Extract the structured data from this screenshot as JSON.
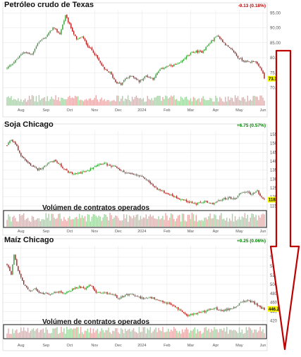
{
  "colors": {
    "up": "#2e9e2e",
    "down": "#b01717",
    "volume_up": "#9fd39f",
    "volume_down": "#e8a7a7",
    "arrow": "#c00000",
    "last_price_box": "#f5f500",
    "grid": "#e6e6e6"
  },
  "chart_data": [
    {
      "type": "candlestick",
      "title": "Petróleo crudo de Texas",
      "change": "-0.13 (0.18%)",
      "change_direction": "down",
      "last_value_label": "73.12",
      "ylim": [
        68,
        96
      ],
      "y_ticks": [
        "95.00",
        "90.00",
        "85.00",
        "80.00",
        "75.00",
        "70.00"
      ],
      "y_tick_values": [
        95,
        90,
        85,
        80,
        75,
        70
      ],
      "x_ticks": [
        "Aug",
        "Sep",
        "Oct",
        "Nov",
        "Dec",
        "2024",
        "Feb",
        "Mar",
        "Apr",
        "May",
        "Jun"
      ],
      "x_tick_index": [
        10,
        28,
        45,
        63,
        80,
        97,
        115,
        132,
        150,
        167,
        184
      ],
      "close_anchors": [
        [
          0,
          76.5
        ],
        [
          6,
          79
        ],
        [
          12,
          82
        ],
        [
          18,
          81
        ],
        [
          22,
          85
        ],
        [
          28,
          87
        ],
        [
          33,
          90
        ],
        [
          38,
          88
        ],
        [
          42,
          94
        ],
        [
          46,
          90
        ],
        [
          50,
          86
        ],
        [
          54,
          87
        ],
        [
          58,
          84
        ],
        [
          62,
          82
        ],
        [
          66,
          79
        ],
        [
          70,
          76
        ],
        [
          74,
          75
        ],
        [
          78,
          72
        ],
        [
          82,
          71
        ],
        [
          85,
          73
        ],
        [
          90,
          74
        ],
        [
          95,
          72
        ],
        [
          100,
          74
        ],
        [
          105,
          73
        ],
        [
          110,
          76
        ],
        [
          114,
          77
        ],
        [
          120,
          77.5
        ],
        [
          124,
          78
        ],
        [
          128,
          80
        ],
        [
          134,
          82
        ],
        [
          140,
          82
        ],
        [
          144,
          84
        ],
        [
          148,
          86
        ],
        [
          151,
          87.5
        ],
        [
          156,
          85
        ],
        [
          160,
          83
        ],
        [
          163,
          82
        ],
        [
          166,
          80
        ],
        [
          170,
          79
        ],
        [
          174,
          78.5
        ],
        [
          178,
          79
        ],
        [
          181,
          77
        ],
        [
          183,
          76
        ],
        [
          185,
          73
        ]
      ],
      "volume_note": "",
      "annotation": ""
    },
    {
      "type": "candlestick",
      "title": "Soja Chicago",
      "change": "+6.75 (0.57%)",
      "change_direction": "up",
      "last_value_label": "1185.75",
      "ylim": [
        1120,
        1570
      ],
      "y_ticks": [
        "1550",
        "1500",
        "1450",
        "1400",
        "1350",
        "1300",
        "1250",
        "1200",
        "1150"
      ],
      "y_tick_values": [
        1550,
        1500,
        1450,
        1400,
        1350,
        1300,
        1250,
        1200,
        1150
      ],
      "x_ticks": [
        "Aug",
        "Sep",
        "Oct",
        "Nov",
        "Dec",
        "2024",
        "Feb",
        "Mar",
        "Apr",
        "May",
        "Jun"
      ],
      "x_tick_index": [
        10,
        28,
        45,
        63,
        80,
        97,
        115,
        132,
        150,
        167,
        184
      ],
      "close_anchors": [
        [
          0,
          1490
        ],
        [
          3,
          1520
        ],
        [
          6,
          1500
        ],
        [
          10,
          1430
        ],
        [
          14,
          1400
        ],
        [
          18,
          1370
        ],
        [
          22,
          1355
        ],
        [
          26,
          1365
        ],
        [
          30,
          1395
        ],
        [
          34,
          1405
        ],
        [
          38,
          1380
        ],
        [
          42,
          1350
        ],
        [
          46,
          1330
        ],
        [
          50,
          1330
        ],
        [
          54,
          1340
        ],
        [
          58,
          1345
        ],
        [
          62,
          1370
        ],
        [
          66,
          1385
        ],
        [
          70,
          1390
        ],
        [
          74,
          1370
        ],
        [
          78,
          1370
        ],
        [
          82,
          1345
        ],
        [
          88,
          1330
        ],
        [
          94,
          1320
        ],
        [
          100,
          1300
        ],
        [
          106,
          1255
        ],
        [
          112,
          1230
        ],
        [
          118,
          1210
        ],
        [
          124,
          1190
        ],
        [
          130,
          1175
        ],
        [
          136,
          1160
        ],
        [
          142,
          1175
        ],
        [
          146,
          1160
        ],
        [
          150,
          1170
        ],
        [
          156,
          1190
        ],
        [
          160,
          1195
        ],
        [
          164,
          1190
        ],
        [
          168,
          1225
        ],
        [
          172,
          1230
        ],
        [
          176,
          1215
        ],
        [
          180,
          1235
        ],
        [
          182,
          1205
        ],
        [
          185,
          1185
        ]
      ],
      "annotation": "Volúmen de contratos operados"
    },
    {
      "type": "candlestick",
      "title": "Maíz Chicago",
      "change": "+0.25 (0.06%)",
      "change_direction": "up",
      "last_value_label": "446.25",
      "ylim": [
        410,
        585
      ],
      "y_ticks": [
        "580",
        "560",
        "540",
        "520",
        "500",
        "480",
        "460",
        "440",
        "420"
      ],
      "y_tick_values": [
        580,
        560,
        540,
        520,
        500,
        480,
        460,
        440,
        420
      ],
      "x_ticks": [
        "Aug",
        "Sep",
        "Oct",
        "Nov",
        "Dec",
        "2024",
        "Feb",
        "Mar",
        "Apr",
        "May",
        "Jun"
      ],
      "x_tick_index": [
        10,
        28,
        45,
        63,
        80,
        97,
        115,
        132,
        150,
        167,
        184
      ],
      "close_anchors": [
        [
          0,
          545
        ],
        [
          3,
          520
        ],
        [
          5,
          565
        ],
        [
          8,
          530
        ],
        [
          12,
          500
        ],
        [
          16,
          485
        ],
        [
          20,
          490
        ],
        [
          24,
          480
        ],
        [
          28,
          482
        ],
        [
          32,
          478
        ],
        [
          36,
          485
        ],
        [
          40,
          480
        ],
        [
          44,
          485
        ],
        [
          48,
          490
        ],
        [
          52,
          495
        ],
        [
          56,
          492
        ],
        [
          60,
          498
        ],
        [
          64,
          482
        ],
        [
          68,
          480
        ],
        [
          72,
          480
        ],
        [
          76,
          478
        ],
        [
          80,
          470
        ],
        [
          84,
          475
        ],
        [
          90,
          478
        ],
        [
          94,
          472
        ],
        [
          98,
          470
        ],
        [
          104,
          470
        ],
        [
          110,
          462
        ],
        [
          116,
          458
        ],
        [
          120,
          452
        ],
        [
          126,
          440
        ],
        [
          130,
          432
        ],
        [
          134,
          435
        ],
        [
          138,
          438
        ],
        [
          142,
          440
        ],
        [
          146,
          445
        ],
        [
          150,
          448
        ],
        [
          154,
          440
        ],
        [
          158,
          445
        ],
        [
          162,
          448
        ],
        [
          166,
          455
        ],
        [
          170,
          462
        ],
        [
          174,
          465
        ],
        [
          178,
          458
        ],
        [
          181,
          452
        ],
        [
          183,
          448
        ],
        [
          185,
          446
        ]
      ],
      "annotation": "Volúmen de contratos operados"
    }
  ]
}
